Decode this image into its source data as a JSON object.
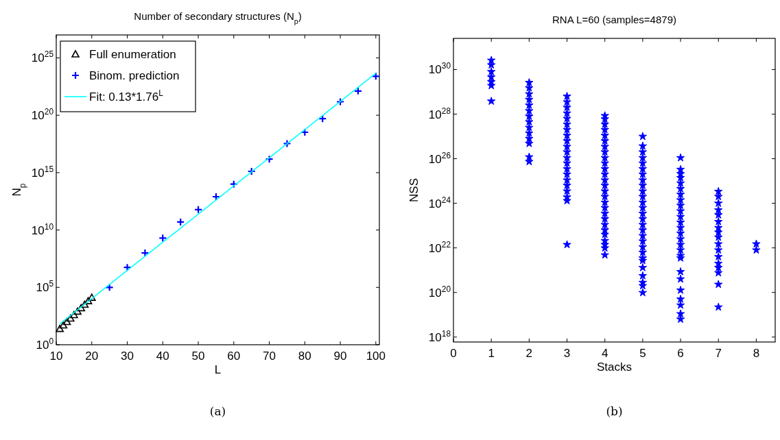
{
  "chart_data": [
    {
      "type": "scatter",
      "title": "Number of secondary structures (N$_{p}$)",
      "xlabel": "L",
      "ylabel": "N$_{p}$",
      "log": "y",
      "grid": false,
      "legend": "top left",
      "xlim": [
        10,
        101
      ],
      "xticks": [
        10,
        20,
        30,
        40,
        50,
        60,
        70,
        80,
        90,
        100
      ],
      "ylim": [
        1,
        1e+27
      ],
      "yticks": [
        {
          "value": 1,
          "label": "10$^{0}$"
        },
        {
          "value": 100000.0,
          "label": "10$^{5}$"
        },
        {
          "value": 10000000000.0,
          "label": "10$^{10}$"
        },
        {
          "value": 1000000000000000.0,
          "label": "10$^{15}$"
        },
        {
          "value": 1e+20,
          "label": "10$^{20}$"
        },
        {
          "value": 1e+25,
          "label": "10$^{25}$"
        }
      ],
      "annotations": [
        "(a)"
      ],
      "series": [
        {
          "name": "Full enumeration",
          "marker": "triangle",
          "color": "#000000",
          "x": [
            11,
            12,
            13,
            14,
            15,
            16,
            17,
            18,
            19,
            20
          ],
          "values": [
            25,
            50,
            100,
            200,
            400,
            800,
            1600,
            3200,
            6500,
            13000
          ]
        },
        {
          "name": "Binom. prediction",
          "marker": "cross",
          "color": "#0000ff",
          "x": [
            25,
            30,
            35,
            40,
            45,
            50,
            55,
            60,
            65,
            70,
            75,
            80,
            85,
            90,
            95,
            100
          ],
          "values": [
            100000.0,
            5500000.0,
            100000000.0,
            2000000000.0,
            50000000000.0,
            600000000000.0,
            8000000000000.0,
            100000000000000.0,
            1300000000000000.0,
            1.5e+16,
            3.4e+17,
            3.3e+18,
            5e+19,
            1.5e+21,
            1.3e+22,
            2.5e+23
          ]
        },
        {
          "name": "Fit: 0.13*1.76$^{L}$",
          "type": "line",
          "marker": "none",
          "color": "#00ffff",
          "x": [
            11,
            100
          ],
          "values": [
            65,
            4.6e+23
          ]
        }
      ]
    },
    {
      "type": "scatter",
      "title": "RNA L=60 (samples=4879)",
      "xlabel": "Stacks",
      "ylabel": "NSS",
      "log": "y",
      "grid": false,
      "legend": false,
      "xlim": [
        0,
        8.5
      ],
      "xticks": [
        0,
        1,
        2,
        3,
        4,
        5,
        6,
        7,
        8
      ],
      "ylim": [
        6e+17,
        2.5e+31
      ],
      "yticks": [
        {
          "value": 1e+18,
          "label": "10$^{18}$"
        },
        {
          "value": 1e+20,
          "label": "10$^{20}$"
        },
        {
          "value": 1e+22,
          "label": "10$^{22}$"
        },
        {
          "value": 1e+24,
          "label": "10$^{24}$"
        },
        {
          "value": 1e+26,
          "label": "10$^{26}$"
        },
        {
          "value": 1e+28,
          "label": "10$^{28}$"
        },
        {
          "value": 1e+30,
          "label": "10$^{30}$"
        }
      ],
      "annotations": [
        "(b)"
      ],
      "series": [
        {
          "marker": "star",
          "color": "#0000ff",
          "x": [
            1,
            1,
            1,
            1,
            1,
            1,
            1,
            2,
            2,
            2,
            2,
            2,
            2,
            2,
            2,
            2,
            2,
            2,
            2,
            2,
            2,
            3,
            3,
            3,
            3,
            3,
            3,
            3,
            3,
            3,
            3,
            3,
            3,
            3,
            3,
            3,
            3,
            3,
            3,
            3,
            3,
            3,
            4,
            4,
            4,
            4,
            4,
            4,
            4,
            4,
            4,
            4,
            4,
            4,
            4,
            4,
            4,
            4,
            4,
            4,
            4,
            4,
            4,
            4,
            4,
            4,
            4,
            4,
            4,
            5,
            5,
            5,
            5,
            5,
            5,
            5,
            5,
            5,
            5,
            5,
            5,
            5,
            5,
            5,
            5,
            5,
            5,
            5,
            5,
            5,
            5,
            5,
            5,
            5,
            5,
            5,
            5,
            6,
            6,
            6,
            6,
            6,
            6,
            6,
            6,
            6,
            6,
            6,
            6,
            6,
            6,
            6,
            6,
            6,
            6,
            6,
            6,
            6,
            6,
            6,
            6,
            6,
            6,
            7,
            7,
            7,
            7,
            7,
            7,
            7,
            7,
            7,
            7,
            7,
            7,
            7,
            7,
            7,
            7,
            7,
            8,
            8
          ],
          "values": [
            2.6e+30,
            1.6e+30,
            8e+29,
            4.6e+29,
            2.8e+29,
            1.9e+29,
            3.8e+28,
            2.6e+29,
            1.5e+29,
            8e+28,
            4.5e+28,
            2.5e+28,
            1.4e+28,
            8e+27,
            4.5e+27,
            2.5e+27,
            1.4e+27,
            8e+26,
            4.8e+26,
            1.2e+26,
            7.4e+25,
            6.3e+28,
            3.5e+28,
            2e+28,
            1.1e+28,
            6.3e+27,
            3.5e+27,
            2e+27,
            1.1e+27,
            6.3e+26,
            3.5e+26,
            2e+26,
            1.1e+26,
            6.3e+25,
            3.5e+25,
            2e+25,
            1.1e+25,
            6.3e+24,
            3.5e+24,
            1.9e+24,
            1.3e+24,
            1.4e+22,
            8.5e+27,
            6e+27,
            3.5e+27,
            2e+27,
            1.1e+27,
            6.3e+26,
            3.5e+26,
            2e+26,
            1.1e+26,
            6.3e+25,
            3.5e+25,
            2e+25,
            1.1e+25,
            6.3e+24,
            3.5e+24,
            2e+24,
            1.1e+24,
            6.3e+23,
            3.5e+23,
            2e+23,
            1.1e+23,
            6.3e+22,
            4e+22,
            2.1e+22,
            1.4e+22,
            9.8e+21,
            4.8e+21,
            1e+27,
            3.7e+26,
            2e+26,
            1.1e+26,
            6.3e+25,
            3.5e+25,
            2e+25,
            1.1e+25,
            6.3e+24,
            3.5e+24,
            2e+24,
            1.1e+24,
            6.3e+23,
            3.5e+23,
            2e+23,
            1.1e+23,
            6.3e+22,
            3.5e+22,
            2e+22,
            1.1e+22,
            6.3e+21,
            3.5e+21,
            2.7e+21,
            1.3e+21,
            5.6e+20,
            2.8e+20,
            2e+20,
            9.8e+19,
            1.1e+26,
            3.3e+25,
            2.1e+25,
            1.4e+25,
            8e+24,
            4.5e+24,
            2.5e+24,
            1.4e+24,
            8e+23,
            4.5e+23,
            2.5e+23,
            1.4e+23,
            8e+22,
            4.5e+22,
            2.5e+22,
            1.4e+22,
            8e+21,
            4.5e+21,
            3.5e+21,
            8.5e+20,
            4e+20,
            1.26e+20,
            5e+19,
            2.7e+19,
            1.1e+19,
            6.3e+18,
            3.4e+24,
            2e+24,
            1e+24,
            5e+23,
            3e+23,
            1.5e+23,
            8e+22,
            5e+22,
            3e+22,
            1.5e+22,
            8e+21,
            4e+21,
            2e+21,
            1.3e+21,
            7.6e+20,
            2.3e+20,
            2.2e+19,
            1.5e+22,
            8e+21
          ]
        }
      ]
    }
  ]
}
